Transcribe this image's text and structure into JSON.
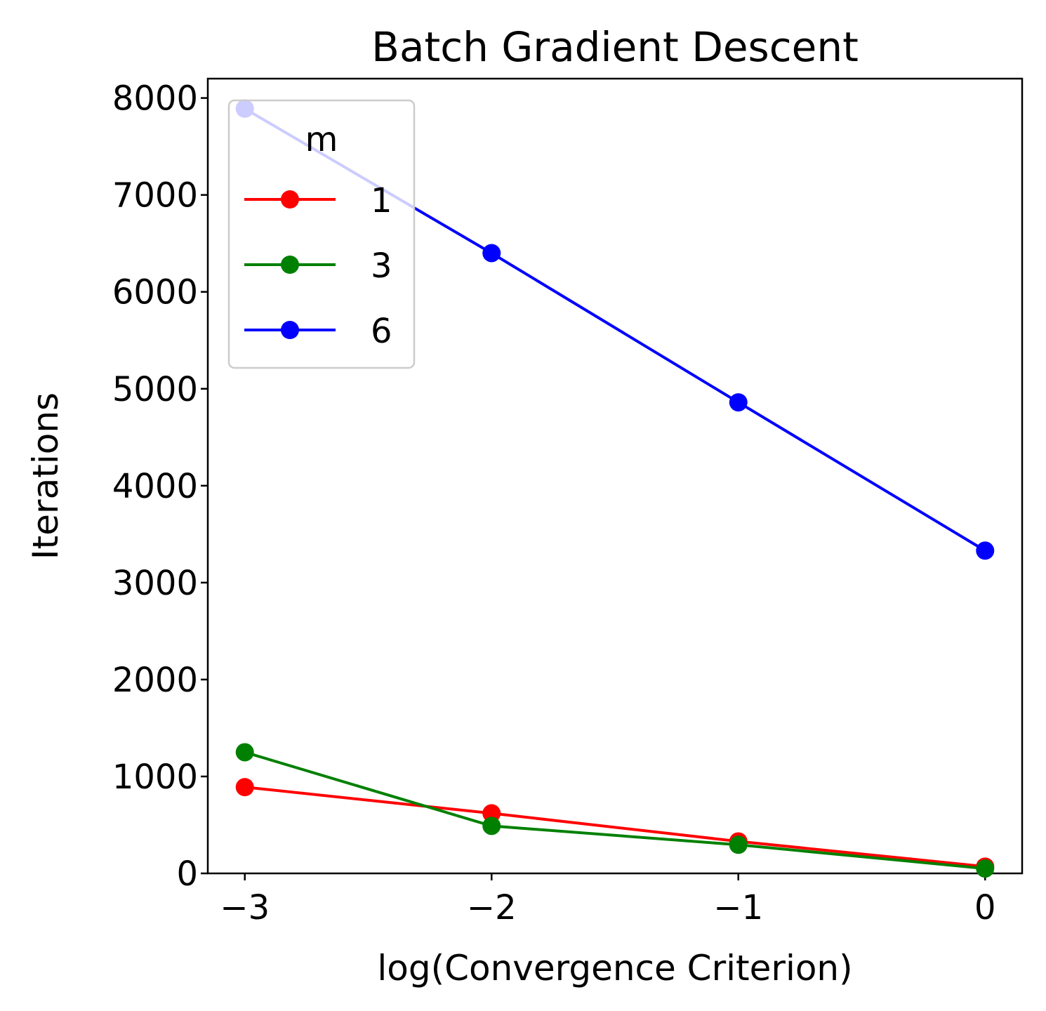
{
  "chart_data": {
    "type": "line",
    "title": "Batch Gradient Descent",
    "xlabel": "log(Convergence Criterion)",
    "ylabel": "Iterations",
    "x": [
      -3,
      -2,
      -1,
      0
    ],
    "xticks": [
      -3,
      -2,
      -1,
      0
    ],
    "xtick_labels": [
      "−3",
      "−2",
      "−1",
      "0"
    ],
    "yticks": [
      0,
      1000,
      2000,
      3000,
      4000,
      5000,
      6000,
      7000,
      8000
    ],
    "ytick_labels": [
      "0",
      "1000",
      "2000",
      "3000",
      "4000",
      "5000",
      "6000",
      "7000",
      "8000"
    ],
    "xlim": [
      -3.15,
      0.15
    ],
    "ylim": [
      0,
      8200
    ],
    "grid": false,
    "legend": {
      "title": "m",
      "placement": "top-left"
    },
    "series": [
      {
        "name": "1",
        "color": "#ff0000",
        "values": [
          890,
          620,
          330,
          70
        ]
      },
      {
        "name": "3",
        "color": "#008000",
        "values": [
          1250,
          490,
          295,
          50
        ]
      },
      {
        "name": "6",
        "color": "#0000ff",
        "values": [
          7890,
          6400,
          4860,
          3330
        ]
      }
    ]
  }
}
